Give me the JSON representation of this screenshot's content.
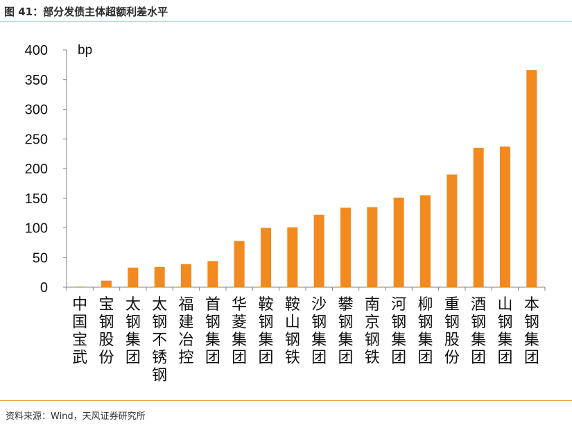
{
  "header": {
    "title": "图 41：部分发债主体超额利差水平"
  },
  "footer": {
    "source": "资料来源：Wind，天风证券研究所"
  },
  "colors": {
    "bar": "#f28a1f",
    "accent_rule": "#e8a14a",
    "axis": "#808080"
  },
  "chart_data": {
    "type": "bar",
    "unit_label": "bp",
    "ylim": [
      0,
      400
    ],
    "yticks": [
      0,
      50,
      100,
      150,
      200,
      250,
      300,
      350,
      400
    ],
    "grid": false,
    "categories": [
      "中国宝武",
      "宝钢股份",
      "太钢集团",
      "太钢不锈钢",
      "福建冶控",
      "首钢集团",
      "华菱集团",
      "鞍钢集团",
      "鞍山钢铁",
      "沙钢集团",
      "攀钢集团",
      "南京钢铁",
      "河钢集团",
      "柳钢集团",
      "重钢股份",
      "酒钢集团",
      "山钢集团",
      "本钢集团"
    ],
    "values": [
      1,
      11,
      33,
      34,
      39,
      44,
      78,
      100,
      101,
      122,
      134,
      135,
      151,
      155,
      190,
      235,
      237,
      366
    ]
  }
}
